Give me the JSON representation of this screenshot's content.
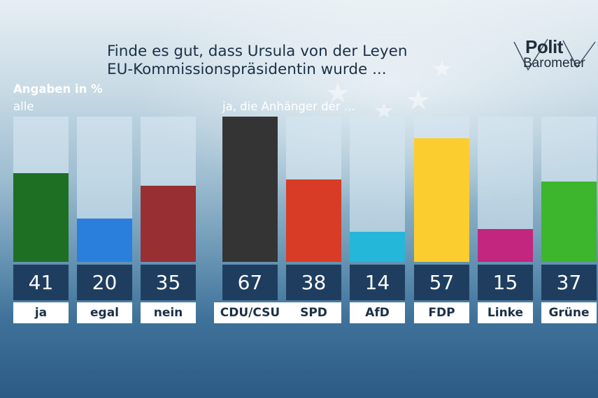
{
  "title": {
    "line1": "Finde es gut, dass Ursula von der Leyen",
    "line2": "EU-Kommissionspräsidentin wurde ..."
  },
  "unit_label": "Angaben in %",
  "group_all_label": "alle",
  "group_parties_label": "ja, die Anhänger der ...",
  "logo": {
    "line1": "Polit",
    "line2": "Barometer"
  },
  "chart_data": [
    {
      "type": "bar",
      "title": "alle",
      "categories": [
        "ja",
        "egal",
        "nein"
      ],
      "values": [
        41,
        20,
        35
      ],
      "colors": [
        "#1e6f23",
        "#2a7fdc",
        "#982f32"
      ],
      "ylim": [
        0,
        67
      ]
    },
    {
      "type": "bar",
      "title": "ja, die Anhänger der ...",
      "categories": [
        "CDU/CSU",
        "SPD",
        "AfD",
        "FDP",
        "Linke",
        "Grüne"
      ],
      "values": [
        67,
        38,
        14,
        57,
        15,
        37
      ],
      "colors": [
        "#343434",
        "#d83b26",
        "#25b7d9",
        "#fccd2e",
        "#c2267f",
        "#3db52c"
      ],
      "ylim": [
        0,
        67
      ]
    }
  ]
}
